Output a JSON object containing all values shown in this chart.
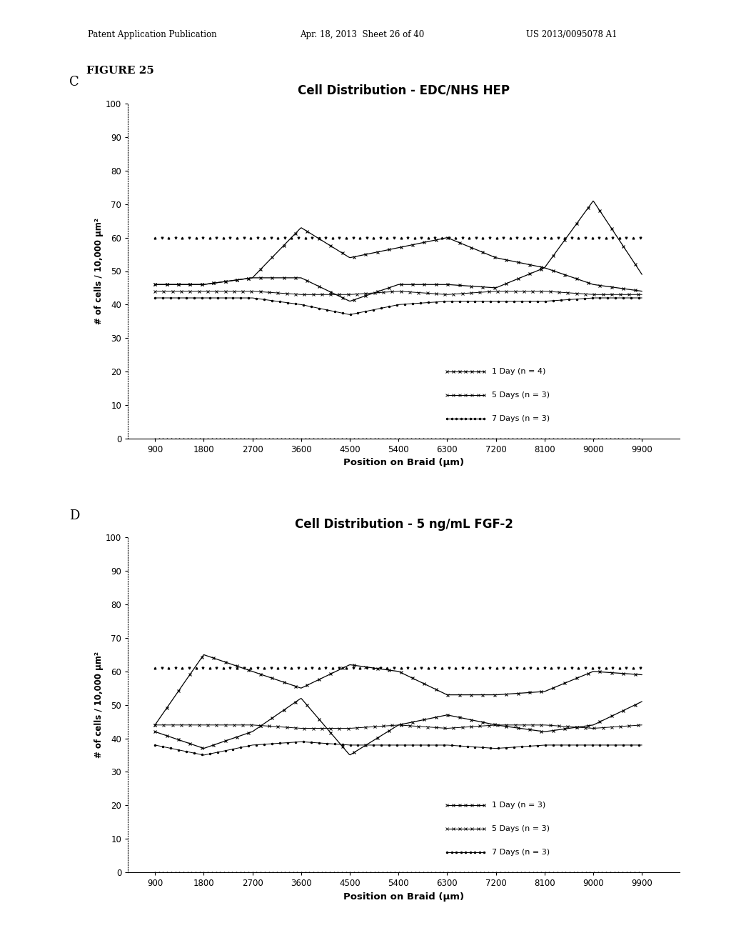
{
  "header_left": "Patent Application Publication",
  "header_mid": "Apr. 18, 2013  Sheet 26 of 40",
  "header_right": "US 2013/0095078 A1",
  "figure_label": "FIGURE 25",
  "panel_C_label": "C",
  "panel_D_label": "D",
  "x_values": [
    900,
    1800,
    2700,
    3600,
    4500,
    5400,
    6300,
    7200,
    8100,
    9000,
    9900
  ],
  "xlabel": "Position on Braid (μm)",
  "ylabel": "# of cells / 10,000 μm²",
  "ylim": [
    0,
    100
  ],
  "yticks": [
    0,
    10,
    20,
    30,
    40,
    50,
    60,
    70,
    80,
    90,
    100
  ],
  "chart_C": {
    "title": "Cell Distribution - EDC/NHS HEP",
    "line1_label": "1 Day (n = 4)",
    "line2_label": "5 Days (n = 3)",
    "line3_label": "7 Days (n = 3)",
    "line_big_y": [
      46,
      46,
      48,
      63,
      54,
      57,
      60,
      54,
      51,
      71,
      49
    ],
    "line_flat1_y": [
      60,
      60,
      60,
      60,
      60,
      60,
      60,
      60,
      60,
      60,
      60
    ],
    "line_mid_y": [
      46,
      46,
      48,
      48,
      41,
      46,
      46,
      45,
      51,
      46,
      44
    ],
    "line_flat2_y": [
      44,
      44,
      44,
      43,
      43,
      44,
      43,
      44,
      44,
      43,
      43
    ],
    "line_flat3_y": [
      42,
      42,
      42,
      40,
      37,
      40,
      41,
      41,
      41,
      42,
      42
    ]
  },
  "chart_D": {
    "title": "Cell Distribution - 5 ng/mL FGF-2",
    "line1_label": "1 Day (n = 3)",
    "line2_label": "5 Days (n = 3)",
    "line3_label": "7 Days (n = 3)",
    "line_big_y": [
      44,
      65,
      60,
      55,
      62,
      60,
      53,
      53,
      54,
      60,
      59
    ],
    "line_flat1_y": [
      61,
      61,
      61,
      61,
      61,
      61,
      61,
      61,
      61,
      61,
      61
    ],
    "line_mid_y": [
      42,
      37,
      42,
      52,
      35,
      44,
      47,
      44,
      42,
      44,
      51
    ],
    "line_flat2_y": [
      44,
      44,
      44,
      43,
      43,
      44,
      43,
      44,
      44,
      43,
      44
    ],
    "line_flat3_y": [
      38,
      35,
      38,
      39,
      38,
      38,
      38,
      37,
      38,
      38,
      38
    ]
  }
}
